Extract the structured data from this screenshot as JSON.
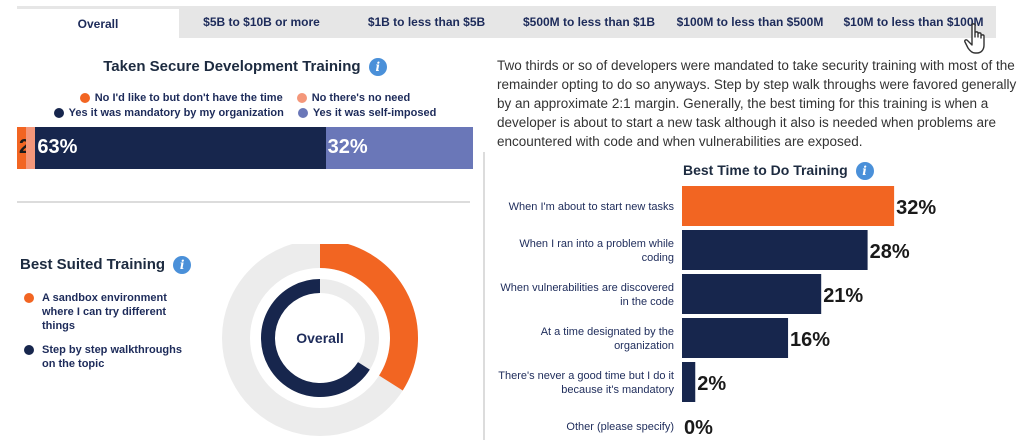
{
  "tabs": [
    {
      "label": "Overall",
      "active": true
    },
    {
      "label": "$5B to $10B or more",
      "active": false
    },
    {
      "label": "$1B to less than $5B",
      "active": false
    },
    {
      "label": "$500M to less than $1B",
      "active": false
    },
    {
      "label": "$100M to less than $500M",
      "active": false
    },
    {
      "label": "$10M to less than $100M",
      "active": false
    }
  ],
  "info_glyph": "i",
  "secure_training": {
    "title": "Taken Secure Development Training",
    "legend": [
      {
        "label": "No I'd like to but don't have the time",
        "color": "#f26522"
      },
      {
        "label": "No there's no need",
        "color": "#f4977a"
      },
      {
        "label": "Yes it was mandatory by my organization",
        "color": "#17264d"
      },
      {
        "label": "Yes it was self-imposed",
        "color": "#6a77b8"
      }
    ]
  },
  "best_suited": {
    "title": "Best Suited Training",
    "center_label": "Overall",
    "legend": [
      {
        "label": "A sandbox environment where I can try different things",
        "color": "#f26522"
      },
      {
        "label": "Step by step walkthroughs on the topic",
        "color": "#17264d"
      }
    ]
  },
  "paragraph": "Two thirds or so of developers were mandated to take security training with most of the remainder opting to do so anyways. Step by step walk throughs were favored generally by an approximate 2:1 margin. Generally, the best timing for this training is when a developer is about to start a new task although it also is needed when problems are encountered with code and when vulnerabilities are exposed.",
  "best_time": {
    "title": "Best Time to Do Training"
  },
  "chart_data": [
    {
      "type": "bar",
      "orientation": "horizontal-stacked",
      "title": "Taken Secure Development Training",
      "series": [
        {
          "name": "No I'd like to but don't have the time",
          "value": 2,
          "label": "2%",
          "color": "#f26522"
        },
        {
          "name": "No there's no need",
          "value": 2,
          "label": "",
          "color": "#f4977a"
        },
        {
          "name": "Yes it was mandatory by my organization",
          "value": 63,
          "label": "63%",
          "color": "#17264d"
        },
        {
          "name": "Yes it was self-imposed",
          "value": 32,
          "label": "32%",
          "color": "#6a77b8"
        }
      ]
    },
    {
      "type": "pie",
      "variant": "donut",
      "title": "Best Suited Training",
      "series": [
        {
          "name": "A sandbox environment where I can try different things",
          "value": 34,
          "color": "#f26522"
        },
        {
          "name": "Step by step walkthroughs on the topic",
          "value": 66,
          "color": "#17264d"
        }
      ]
    },
    {
      "type": "bar",
      "orientation": "horizontal",
      "title": "Best Time to Do Training",
      "categories": [
        "When I'm about to start new tasks",
        "When I ran into a problem while coding",
        "When vulnerabilities are discovered in the code",
        "At a time designated by the organization",
        "There's never a good time but I do it because it's mandatory",
        "Other (please specify)"
      ],
      "category_lines": [
        [
          "When I'm about to start new tasks"
        ],
        [
          "When I ran into a problem while",
          "coding"
        ],
        [
          "When vulnerabilities are discovered",
          "in the code"
        ],
        [
          "At a time designated by the",
          "organization"
        ],
        [
          "There's never a good time but I do it",
          "because it's mandatory"
        ],
        [
          "Other (please specify)"
        ]
      ],
      "values": [
        32,
        28,
        21,
        16,
        2,
        0
      ],
      "labels": [
        "32%",
        "28%",
        "21%",
        "16%",
        "2%",
        "0%"
      ],
      "colors": [
        "#f26522",
        "#17264d",
        "#17264d",
        "#17264d",
        "#17264d",
        "#17264d"
      ],
      "xlim": [
        0,
        35
      ]
    }
  ]
}
